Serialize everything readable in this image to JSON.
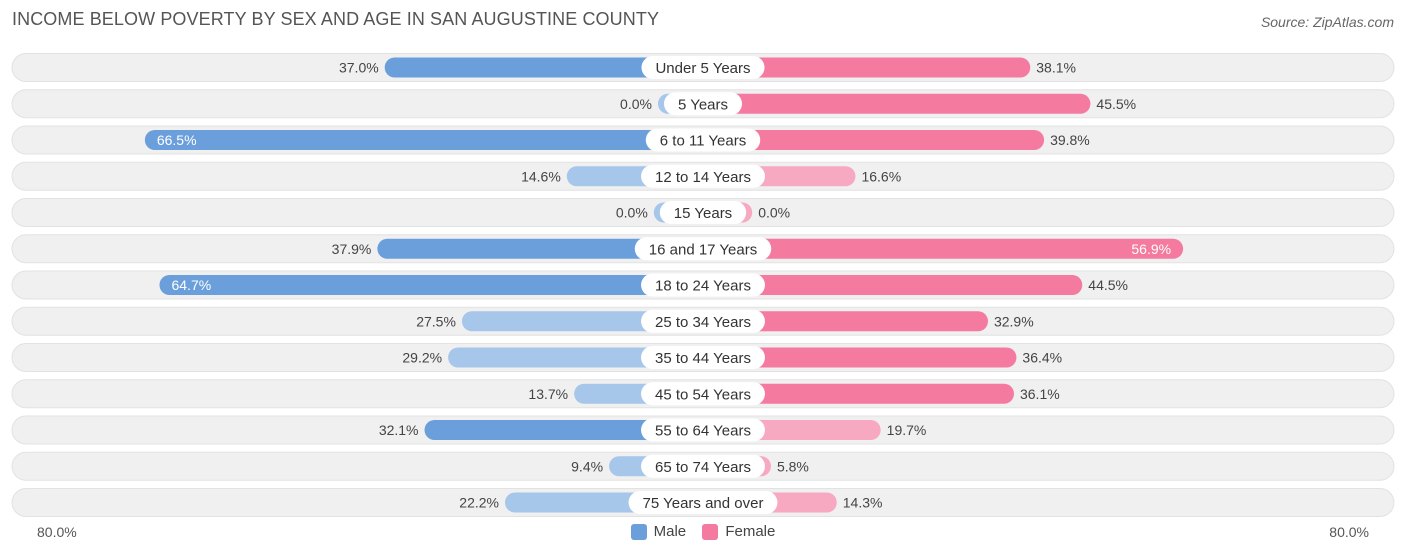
{
  "title": "INCOME BELOW POVERTY BY SEX AND AGE IN SAN AUGUSTINE COUNTY",
  "source": "Source: ZipAtlas.com",
  "axis": {
    "left_label": "80.0%",
    "right_label": "80.0%"
  },
  "legend": {
    "male_label": "Male",
    "female_label": "Female"
  },
  "colors": {
    "male_strong": "#6a9fdb",
    "male_light": "#a6c6ea",
    "female_strong": "#f47a9f",
    "female_light": "#f6a9c0",
    "row_bg": "#f0f0f0"
  },
  "chart_data": {
    "type": "bar",
    "orientation": "horizontal-diverging",
    "title": "INCOME BELOW POVERTY BY SEX AND AGE IN SAN AUGUSTINE COUNTY",
    "xlim": [
      -80,
      80
    ],
    "categories": [
      "Under 5 Years",
      "5 Years",
      "6 to 11 Years",
      "12 to 14 Years",
      "15 Years",
      "16 and 17 Years",
      "18 to 24 Years",
      "25 to 34 Years",
      "35 to 44 Years",
      "45 to 54 Years",
      "55 to 64 Years",
      "65 to 74 Years",
      "75 Years and over"
    ],
    "series": [
      {
        "name": "Male",
        "values": [
          37.0,
          0.0,
          66.5,
          14.6,
          0.0,
          37.9,
          64.7,
          27.5,
          29.2,
          13.7,
          32.1,
          9.4,
          22.2
        ],
        "labels": [
          "37.0%",
          "0.0%",
          "66.5%",
          "14.6%",
          "0.0%",
          "37.9%",
          "64.7%",
          "27.5%",
          "29.2%",
          "13.7%",
          "32.1%",
          "9.4%",
          "22.2%"
        ]
      },
      {
        "name": "Female",
        "values": [
          38.1,
          45.5,
          39.8,
          16.6,
          0.0,
          56.9,
          44.5,
          32.9,
          36.4,
          36.1,
          19.7,
          5.8,
          14.3
        ],
        "labels": [
          "38.1%",
          "45.5%",
          "39.8%",
          "16.6%",
          "0.0%",
          "56.9%",
          "44.5%",
          "32.9%",
          "36.4%",
          "36.1%",
          "19.7%",
          "5.8%",
          "14.3%"
        ]
      }
    ],
    "legend_position": "bottom-center"
  }
}
